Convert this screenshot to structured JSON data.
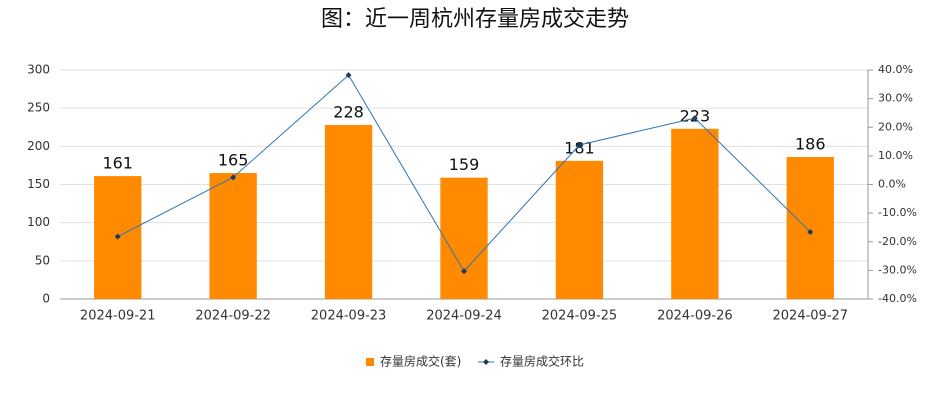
{
  "chart_data": {
    "type": "bar_line",
    "title": "图：近一周杭州存量房成交走势",
    "categories": [
      "2024-09-21",
      "2024-09-22",
      "2024-09-23",
      "2024-09-24",
      "2024-09-25",
      "2024-09-26",
      "2024-09-27"
    ],
    "series": [
      {
        "name": "存量房成交(套)",
        "type": "bar",
        "color": "#ff8a00",
        "values": [
          161,
          165,
          228,
          159,
          181,
          223,
          186
        ]
      },
      {
        "name": "存量房成交环比",
        "type": "line",
        "axis": "y2",
        "color": "#2e75b6",
        "values": [
          -18.2,
          2.5,
          38.2,
          -30.3,
          13.8,
          23.2,
          -16.6
        ]
      }
    ],
    "ylim": [
      0,
      300
    ],
    "yticks": [
      0,
      50,
      100,
      150,
      200,
      250,
      300
    ],
    "y2lim": [
      -40,
      40
    ],
    "y2ticks": [
      {
        "value": -40,
        "label": "-40.0%"
      },
      {
        "value": -30,
        "label": "-30.0%"
      },
      {
        "value": -20,
        "label": "-20.0%"
      },
      {
        "value": -10,
        "label": "-10.0%"
      },
      {
        "value": 0,
        "label": "0.0%"
      },
      {
        "value": 10,
        "label": "10.0%"
      },
      {
        "value": 20,
        "label": "20.0%"
      },
      {
        "value": 30,
        "label": "30.0%"
      },
      {
        "value": 40,
        "label": "40.0%"
      }
    ],
    "grid": true,
    "legend": "bottom"
  }
}
